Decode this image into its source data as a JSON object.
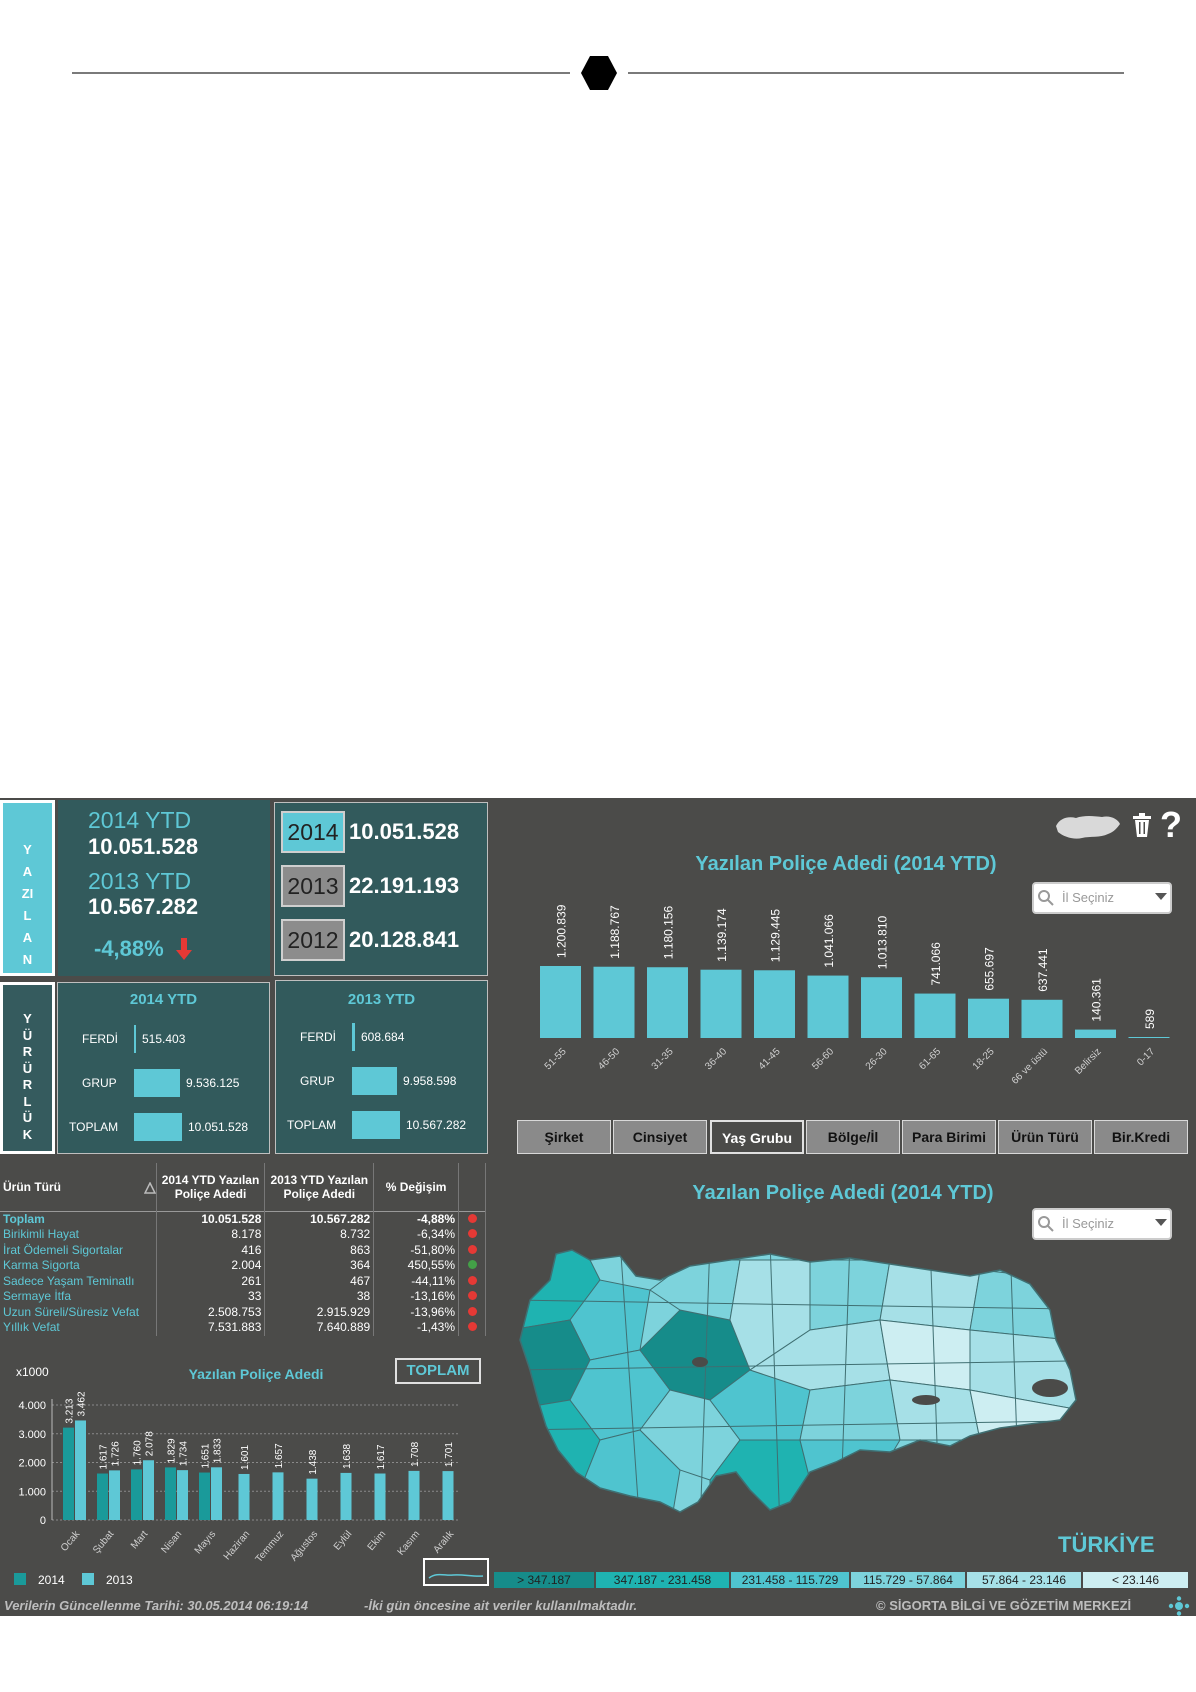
{
  "header": {
    "ornament": "hexagon"
  },
  "side_labels": {
    "yazilan": "YAZILAN",
    "yururluk": "YÜRÜRLÜK"
  },
  "ytd_summary": {
    "y2014_label": "2014 YTD",
    "y2014_value": "10.051.528",
    "y2013_label": "2013 YTD",
    "y2013_value": "10.567.282",
    "change": "-4,88%",
    "change_icon": "down-arrow-icon",
    "change_color": "#e53935"
  },
  "year_totals": [
    {
      "year": "2014",
      "value": "10.051.528",
      "color": "#5ec8d6"
    },
    {
      "year": "2013",
      "value": "22.191.193",
      "color": "#8c8c8c"
    },
    {
      "year": "2012",
      "value": "20.128.841",
      "color": "#8c8c8c"
    }
  ],
  "yururluk_2014": {
    "title": "2014 YTD",
    "rows": [
      {
        "label": "FERDİ",
        "value": "515.403",
        "amount": 515403
      },
      {
        "label": "GRUP",
        "value": "9.536.125",
        "amount": 9536125
      },
      {
        "label": "TOPLAM",
        "value": "10.051.528",
        "amount": 10051528
      }
    ]
  },
  "yururluk_2013": {
    "title": "2013 YTD",
    "rows": [
      {
        "label": "FERDİ",
        "value": "608.684",
        "amount": 608684
      },
      {
        "label": "GRUP",
        "value": "9.958.598",
        "amount": 9958598
      },
      {
        "label": "TOPLAM",
        "value": "10.567.282",
        "amount": 10567282
      }
    ]
  },
  "toolbar": {
    "map_icon": "turkey-map-icon",
    "trash_icon": "trash-icon",
    "help_label": "?"
  },
  "il_select": {
    "placeholder": "İl Seçiniz"
  },
  "tabs": [
    {
      "label": "Şirket",
      "active": false
    },
    {
      "label": "Cinsiyet",
      "active": false
    },
    {
      "label": "Yaş Grubu",
      "active": true
    },
    {
      "label": "Bölge/İl",
      "active": false
    },
    {
      "label": "Para Birimi",
      "active": false
    },
    {
      "label": "Ürün Türü",
      "active": false
    },
    {
      "label": "Bir.Kredi",
      "active": false
    }
  ],
  "product_table": {
    "headers": [
      "Ürün Türü",
      "2014 YTD Yazılan Poliçe Adedi",
      "2013 YTD Yazılan Poliçe Adedi",
      "% Değişim"
    ],
    "rows": [
      {
        "name": "Toplam",
        "v2014": "10.051.528",
        "v2013": "10.567.282",
        "change": "-4,88%",
        "status": "#e53935"
      },
      {
        "name": "Birikimli Hayat",
        "v2014": "8.178",
        "v2013": "8.732",
        "change": "-6,34%",
        "status": "#e53935"
      },
      {
        "name": "İrat Ödemeli Sigortalar",
        "v2014": "416",
        "v2013": "863",
        "change": "-51,80%",
        "status": "#e53935"
      },
      {
        "name": "Karma Sigorta",
        "v2014": "2.004",
        "v2013": "364",
        "change": "450,55%",
        "status": "#43a047"
      },
      {
        "name": "Sadece Yaşam Teminatlı",
        "v2014": "261",
        "v2013": "467",
        "change": "-44,11%",
        "status": "#e53935"
      },
      {
        "name": "Sermaye İtfa",
        "v2014": "33",
        "v2013": "38",
        "change": "-13,16%",
        "status": "#e53935"
      },
      {
        "name": "Uzun Süreli/Süresiz Vefat",
        "v2014": "2.508.753",
        "v2013": "2.915.929",
        "change": "-13,96%",
        "status": "#e53935"
      },
      {
        "name": "Yıllık Vefat",
        "v2014": "7.531.883",
        "v2013": "7.640.889",
        "change": "-1,43%",
        "status": "#e53935"
      }
    ]
  },
  "map": {
    "title": "Yazılan Poliçe Adedi (2014 YTD)",
    "country_label": "TÜRKİYE",
    "legend": [
      {
        "label": "> 347.187",
        "color": "#168c8a"
      },
      {
        "label": "347.187 - 231.458",
        "color": "#1fb3b1"
      },
      {
        "label": "231.458 - 115.729",
        "color": "#4fc4cf"
      },
      {
        "label": "115.729 - 57.864",
        "color": "#7dd3dc"
      },
      {
        "label": "57.864 - 23.146",
        "color": "#a6e0e7"
      },
      {
        "label": "< 23.146",
        "color": "#cdeef2"
      }
    ]
  },
  "toplam_button": {
    "label": "TOPLAM"
  },
  "footer": {
    "update_text": "Verilerin Güncellenme Tarihi: 30.05.2014 06:19:14",
    "note_text": "-İki gün öncesine ait veriler kullanılmaktadır.",
    "copyright": "© SİGORTA BİLGİ VE GÖZETİM MERKEZİ"
  },
  "chart_data": [
    {
      "type": "bar",
      "title": "Yazılan Poliçe Adedi (2014 YTD)",
      "categories": [
        "51-55",
        "46-50",
        "31-35",
        "36-40",
        "41-45",
        "56-60",
        "26-30",
        "61-65",
        "18-25",
        "66 ve üstü",
        "Belirsiz",
        "0-17"
      ],
      "values": [
        1200839,
        1188767,
        1180156,
        1139174,
        1129445,
        1041066,
        1013810,
        741066,
        655697,
        637441,
        140361,
        589
      ],
      "labels": [
        "1.200.839",
        "1.188.767",
        "1.180.156",
        "1.139.174",
        "1.129.445",
        "1.041.066",
        "1.013.810",
        "741.066",
        "655.697",
        "637.441",
        "140.361",
        "589"
      ],
      "color": "#5ec8d6"
    },
    {
      "type": "bar",
      "title": "Yazılan Poliçe Adedi",
      "unit_label": "x1000",
      "categories": [
        "Ocak",
        "Şubat",
        "Mart",
        "Nisan",
        "Mayıs",
        "Haziran",
        "Temmuz",
        "Ağustos",
        "Eylül",
        "Ekim",
        "Kasım",
        "Aralık"
      ],
      "yticks": [
        "0",
        "1.000",
        "2.000",
        "3.000",
        "4.000"
      ],
      "ylim": [
        0,
        4000
      ],
      "series": [
        {
          "name": "2014",
          "color": "#1a9a9a",
          "values": [
            3213,
            1617,
            1760,
            1829,
            1651,
            null,
            null,
            null,
            null,
            null,
            null,
            null
          ],
          "labels": [
            "3.213",
            "1.617",
            "1.760",
            "1.829",
            "1.651",
            "",
            "",
            "",
            "",
            "",
            "",
            ""
          ]
        },
        {
          "name": "2013",
          "color": "#5ec8d6",
          "values": [
            3462,
            1726,
            2078,
            1734,
            1833,
            1601,
            1657,
            1438,
            1638,
            1617,
            1708,
            1701
          ],
          "labels": [
            "3.462",
            "1.726",
            "2.078",
            "1.734",
            "1.833",
            "1.601",
            "1.657",
            "1.438",
            "1.638",
            "1.617",
            "1.708",
            "1.701"
          ]
        }
      ]
    }
  ]
}
